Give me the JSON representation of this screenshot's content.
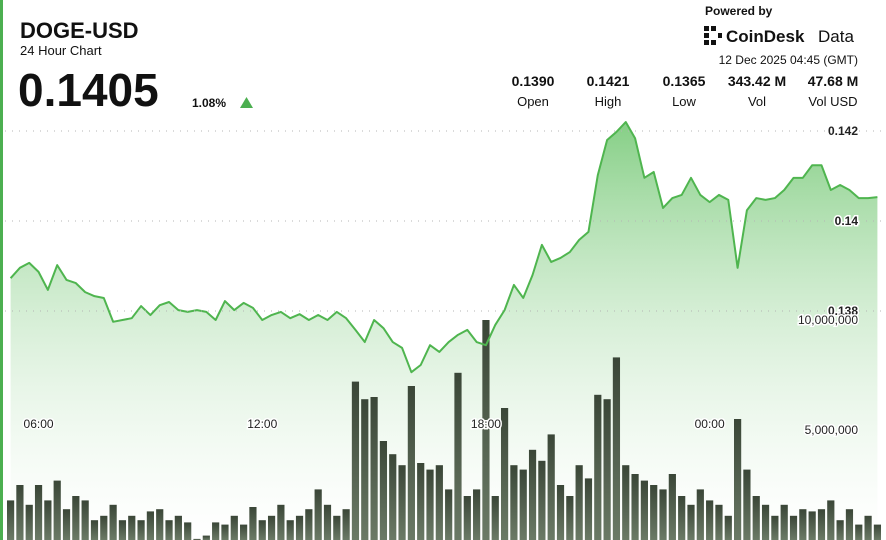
{
  "header": {
    "symbol": "DOGE-USD",
    "subtitle": "24 Hour Chart",
    "price": "0.1405",
    "change": "1.08%",
    "powered_by": "Powered by",
    "logo_name": "CoinDesk",
    "logo_suffix": "Data",
    "timestamp": "12 Dec 2025 04:45 (GMT)",
    "stats": [
      {
        "value": "0.1390",
        "label": "Open"
      },
      {
        "value": "0.1421",
        "label": "High"
      },
      {
        "value": "0.1365",
        "label": "Low"
      },
      {
        "value": "343.42 M",
        "label": "Vol"
      },
      {
        "value": "47.68 M",
        "label": "Vol USD"
      }
    ]
  },
  "chart_data": {
    "type": "area",
    "grid": true,
    "x": [
      5.25,
      5.5,
      5.75,
      6,
      6.25,
      6.5,
      6.75,
      7,
      7.25,
      7.5,
      7.75,
      8,
      8.25,
      8.5,
      8.75,
      9,
      9.25,
      9.5,
      9.75,
      10,
      10.25,
      10.5,
      10.75,
      11,
      11.25,
      11.5,
      11.75,
      12,
      12.25,
      12.5,
      12.75,
      13,
      13.25,
      13.5,
      13.75,
      14,
      14.25,
      14.5,
      14.75,
      15,
      15.25,
      15.5,
      15.75,
      16,
      16.25,
      16.5,
      16.75,
      17,
      17.25,
      17.5,
      17.75,
      18,
      18.25,
      18.5,
      18.75,
      19,
      19.25,
      19.5,
      19.75,
      20,
      20.25,
      20.5,
      20.75,
      21,
      21.25,
      21.5,
      21.75,
      22,
      22.25,
      22.5,
      22.75,
      23,
      23.25,
      23.5,
      23.75,
      24,
      24.25,
      24.5,
      24.75,
      25,
      25.25,
      25.5,
      25.75,
      26,
      26.25,
      26.5,
      26.75,
      27,
      27.25,
      27.5,
      27.75,
      28,
      28.25,
      28.5
    ],
    "xlim": [
      5.1,
      28.65
    ],
    "xticks": [
      {
        "value": 6,
        "label": "06:00"
      },
      {
        "value": 12,
        "label": "12:00"
      },
      {
        "value": 18,
        "label": "18:00"
      },
      {
        "value": 24,
        "label": "00:00"
      }
    ],
    "ylim": [
      0.13291,
      0.14269
    ],
    "yticks": [
      0.138,
      0.14,
      0.142
    ],
    "y2lim": [
      0,
      20000000
    ],
    "y2ticks": [
      {
        "value": 5000000,
        "label": "5,000,000"
      },
      {
        "value": 10000000,
        "label": "10,000,000"
      }
    ],
    "series": [
      {
        "type": "area",
        "color": "#4fb54f",
        "values": [
          0.13873,
          0.13896,
          0.13907,
          0.13887,
          0.13847,
          0.13902,
          0.13869,
          0.13862,
          0.13842,
          0.13833,
          0.13829,
          0.13776,
          0.1378,
          0.13784,
          0.13811,
          0.13791,
          0.13813,
          0.1382,
          0.13802,
          0.13798,
          0.13802,
          0.13798,
          0.1378,
          0.13822,
          0.13802,
          0.13818,
          0.13807,
          0.1378,
          0.13791,
          0.13798,
          0.13784,
          0.13793,
          0.1378,
          0.13791,
          0.1378,
          0.13798,
          0.13784,
          0.13758,
          0.13731,
          0.1378,
          0.13762,
          0.13731,
          0.13718,
          0.13664,
          0.1368,
          0.13724,
          0.13709,
          0.13731,
          0.13747,
          0.13758,
          0.13731,
          0.13724,
          0.13769,
          0.13802,
          0.13858,
          0.13829,
          0.1388,
          0.13947,
          0.13909,
          0.13918,
          0.13931,
          0.13958,
          0.13976,
          0.14102,
          0.1418,
          0.14198,
          0.1422,
          0.14184,
          0.14096,
          0.14109,
          0.14029,
          0.14051,
          0.14058,
          0.14096,
          0.14058,
          0.14042,
          0.14058,
          0.14047,
          0.13896,
          0.14024,
          0.14051,
          0.14047,
          0.14051,
          0.14069,
          0.14096,
          0.14096,
          0.14124,
          0.14124,
          0.14069,
          0.1408,
          0.14069,
          0.14051,
          0.14051,
          0.14053
        ]
      },
      {
        "type": "bar",
        "axis": "y2",
        "color": "#3d4a3a",
        "values": [
          1800000,
          2500000,
          1600000,
          2500000,
          1800000,
          2700000,
          1400000,
          2000000,
          1800000,
          900000,
          1100000,
          1600000,
          900000,
          1100000,
          900000,
          1300000,
          1400000,
          900000,
          1100000,
          800000,
          50000,
          200000,
          800000,
          700000,
          1100000,
          700000,
          1500000,
          900000,
          1100000,
          1600000,
          900000,
          1100000,
          1400000,
          2300000,
          1600000,
          1100000,
          1400000,
          7200000,
          6400000,
          6500000,
          4500000,
          3900000,
          3400000,
          7000000,
          3500000,
          3200000,
          3400000,
          2300000,
          7600000,
          2000000,
          2300000,
          10000000,
          2000000,
          6000000,
          3400000,
          3200000,
          4100000,
          3600000,
          4800000,
          2500000,
          2000000,
          3400000,
          2800000,
          6600000,
          6400000,
          8300000,
          3400000,
          3000000,
          2700000,
          2500000,
          2300000,
          3000000,
          2000000,
          1600000,
          2300000,
          1800000,
          1600000,
          1100000,
          5500000,
          3200000,
          2000000,
          1600000,
          1100000,
          1600000,
          1100000,
          1400000,
          1300000,
          1400000,
          1800000,
          900000,
          1400000,
          700000,
          1100000,
          700000
        ]
      }
    ]
  }
}
